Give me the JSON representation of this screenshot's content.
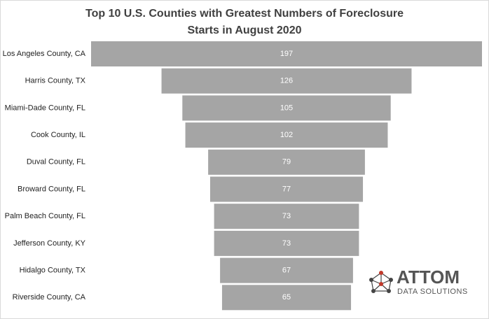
{
  "chart_data": {
    "type": "funnel",
    "title": [
      "Top 10 U.S. Counties with Greatest Numbers of Foreclosure",
      "Starts in August 2020"
    ],
    "categories": [
      "Los Angeles County, CA",
      "Harris County, TX",
      "Miami-Dade County, FL",
      "Cook County, IL",
      "Duval County, FL",
      "Broward County, FL",
      "Palm Beach County, FL",
      "Jefferson County, KY",
      "Hidalgo County, TX",
      "Riverside County, CA"
    ],
    "values": [
      197,
      126,
      105,
      102,
      79,
      77,
      73,
      73,
      67,
      65
    ],
    "color": "#a5a5a5"
  },
  "logo": {
    "name": "ATTOM",
    "tagline": "DATA SOLUTIONS"
  }
}
